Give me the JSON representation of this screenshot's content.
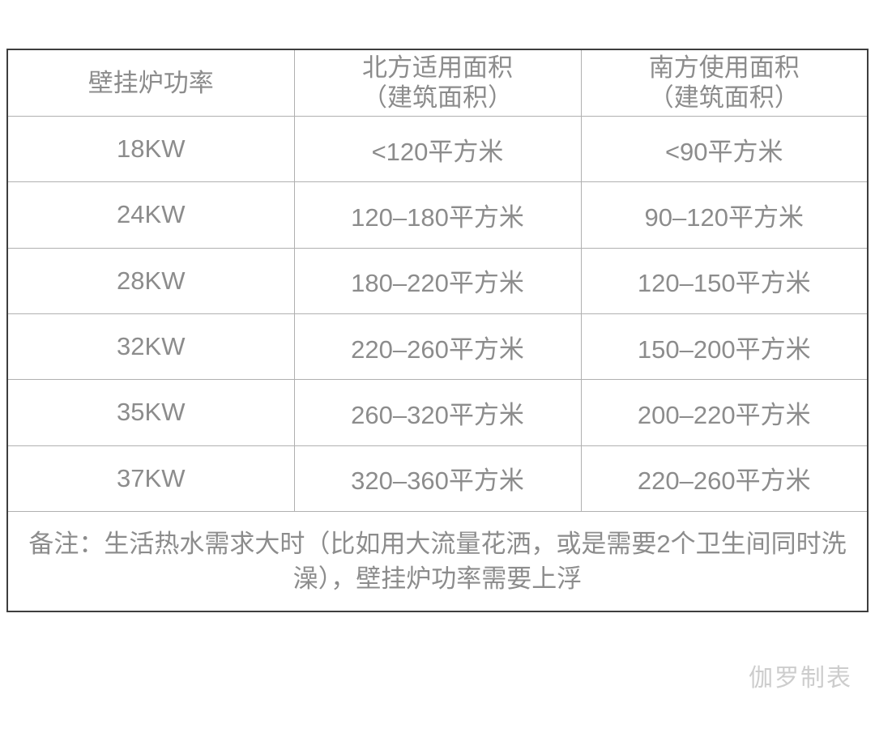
{
  "chart_data": {
    "type": "table",
    "title": "",
    "columns": [
      "壁挂炉功率",
      "北方适用面积（建筑面积）",
      "南方使用面积（建筑面积）"
    ],
    "rows": [
      [
        "18KW",
        "<120平方米",
        "<90平方米"
      ],
      [
        "24KW",
        "120–180平方米",
        "90–120平方米"
      ],
      [
        "28KW",
        "180–220平方米",
        "120–150平方米"
      ],
      [
        "32KW",
        "220–260平方米",
        "150–200平方米"
      ],
      [
        "35KW",
        "260–320平方米",
        "200–220平方米"
      ],
      [
        "37KW",
        "320–360平方米",
        "220–260平方米"
      ]
    ],
    "annotations": [
      "备注：生活热水需求大时（比如用大流量花洒，或是需要2个卫生间同时洗澡），壁挂炉功率需要上浮"
    ],
    "layout_hints": {
      "grid": "on",
      "outer_border": "dark",
      "inner_border": "light",
      "columns_equal_width": true
    }
  },
  "header_display": [
    {
      "line1": "壁挂炉功率",
      "line2": ""
    },
    {
      "line1": "北方适用面积",
      "line2": "（建筑面积）"
    },
    {
      "line1": "南方使用面积",
      "line2": "（建筑面积）"
    }
  ],
  "note": "备注：生活热水需求大时（比如用大流量花洒，或是需要2个卫生间同时洗澡），壁挂炉功率需要上浮",
  "watermark": "伽罗制表",
  "colors": {
    "text": "#8c8c8c",
    "outer_border": "#3e3e3e",
    "grid_line": "#b0b0b0",
    "watermark": "#cdcdcd",
    "background": "#ffffff"
  }
}
